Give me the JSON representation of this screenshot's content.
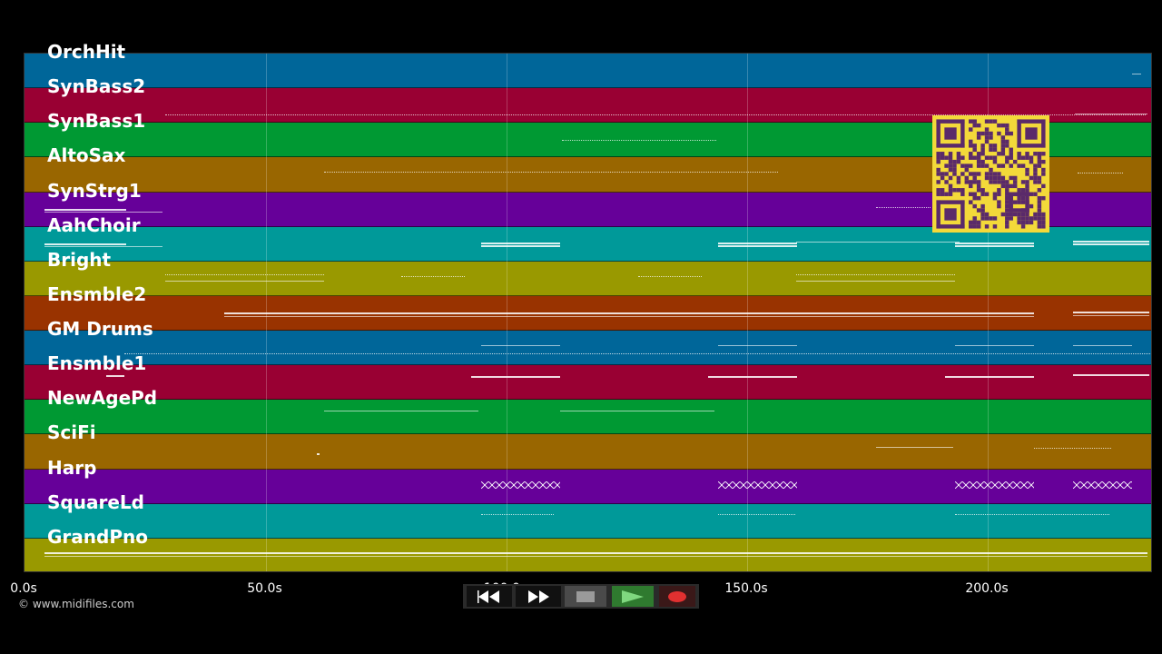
{
  "tracks": [
    {
      "name": "OrchHit",
      "color": "#006699"
    },
    {
      "name": "SynBass2",
      "color": "#990033"
    },
    {
      "name": "SynBass1",
      "color": "#009933"
    },
    {
      "name": "AltoSax",
      "color": "#996600"
    },
    {
      "name": "SynStrg1",
      "color": "#660099"
    },
    {
      "name": "AahChoir",
      "color": "#009999"
    },
    {
      "name": "Bright",
      "color": "#999900"
    },
    {
      "name": "Ensmble2",
      "color": "#993300"
    },
    {
      "name": "GM Drums",
      "color": "#006699"
    },
    {
      "name": "Ensmble1",
      "color": "#990033"
    },
    {
      "name": "NewAgePd",
      "color": "#009933"
    },
    {
      "name": "SciFi",
      "color": "#996600"
    },
    {
      "name": "Harp",
      "color": "#660099"
    },
    {
      "name": "SquareLd",
      "color": "#009999"
    },
    {
      "name": "GrandPno",
      "color": "#999900"
    }
  ],
  "timeline": {
    "ticks": [
      "0.0s",
      "50.0s",
      "100.0s",
      "150.0s",
      "200.0s"
    ]
  },
  "copyright": "© www.midifiles.com",
  "controls": {
    "rewind": "rewind-icon",
    "fast_forward": "fast-forward-icon",
    "stop": "stop-icon",
    "play": "play-icon",
    "record": "record-icon"
  },
  "colors": {
    "background": "#000000",
    "qr_bg": "#f3d93a",
    "qr_fg": "#5a2a6a",
    "play_green": "#2f7a2f",
    "record_red": "#e03030"
  }
}
